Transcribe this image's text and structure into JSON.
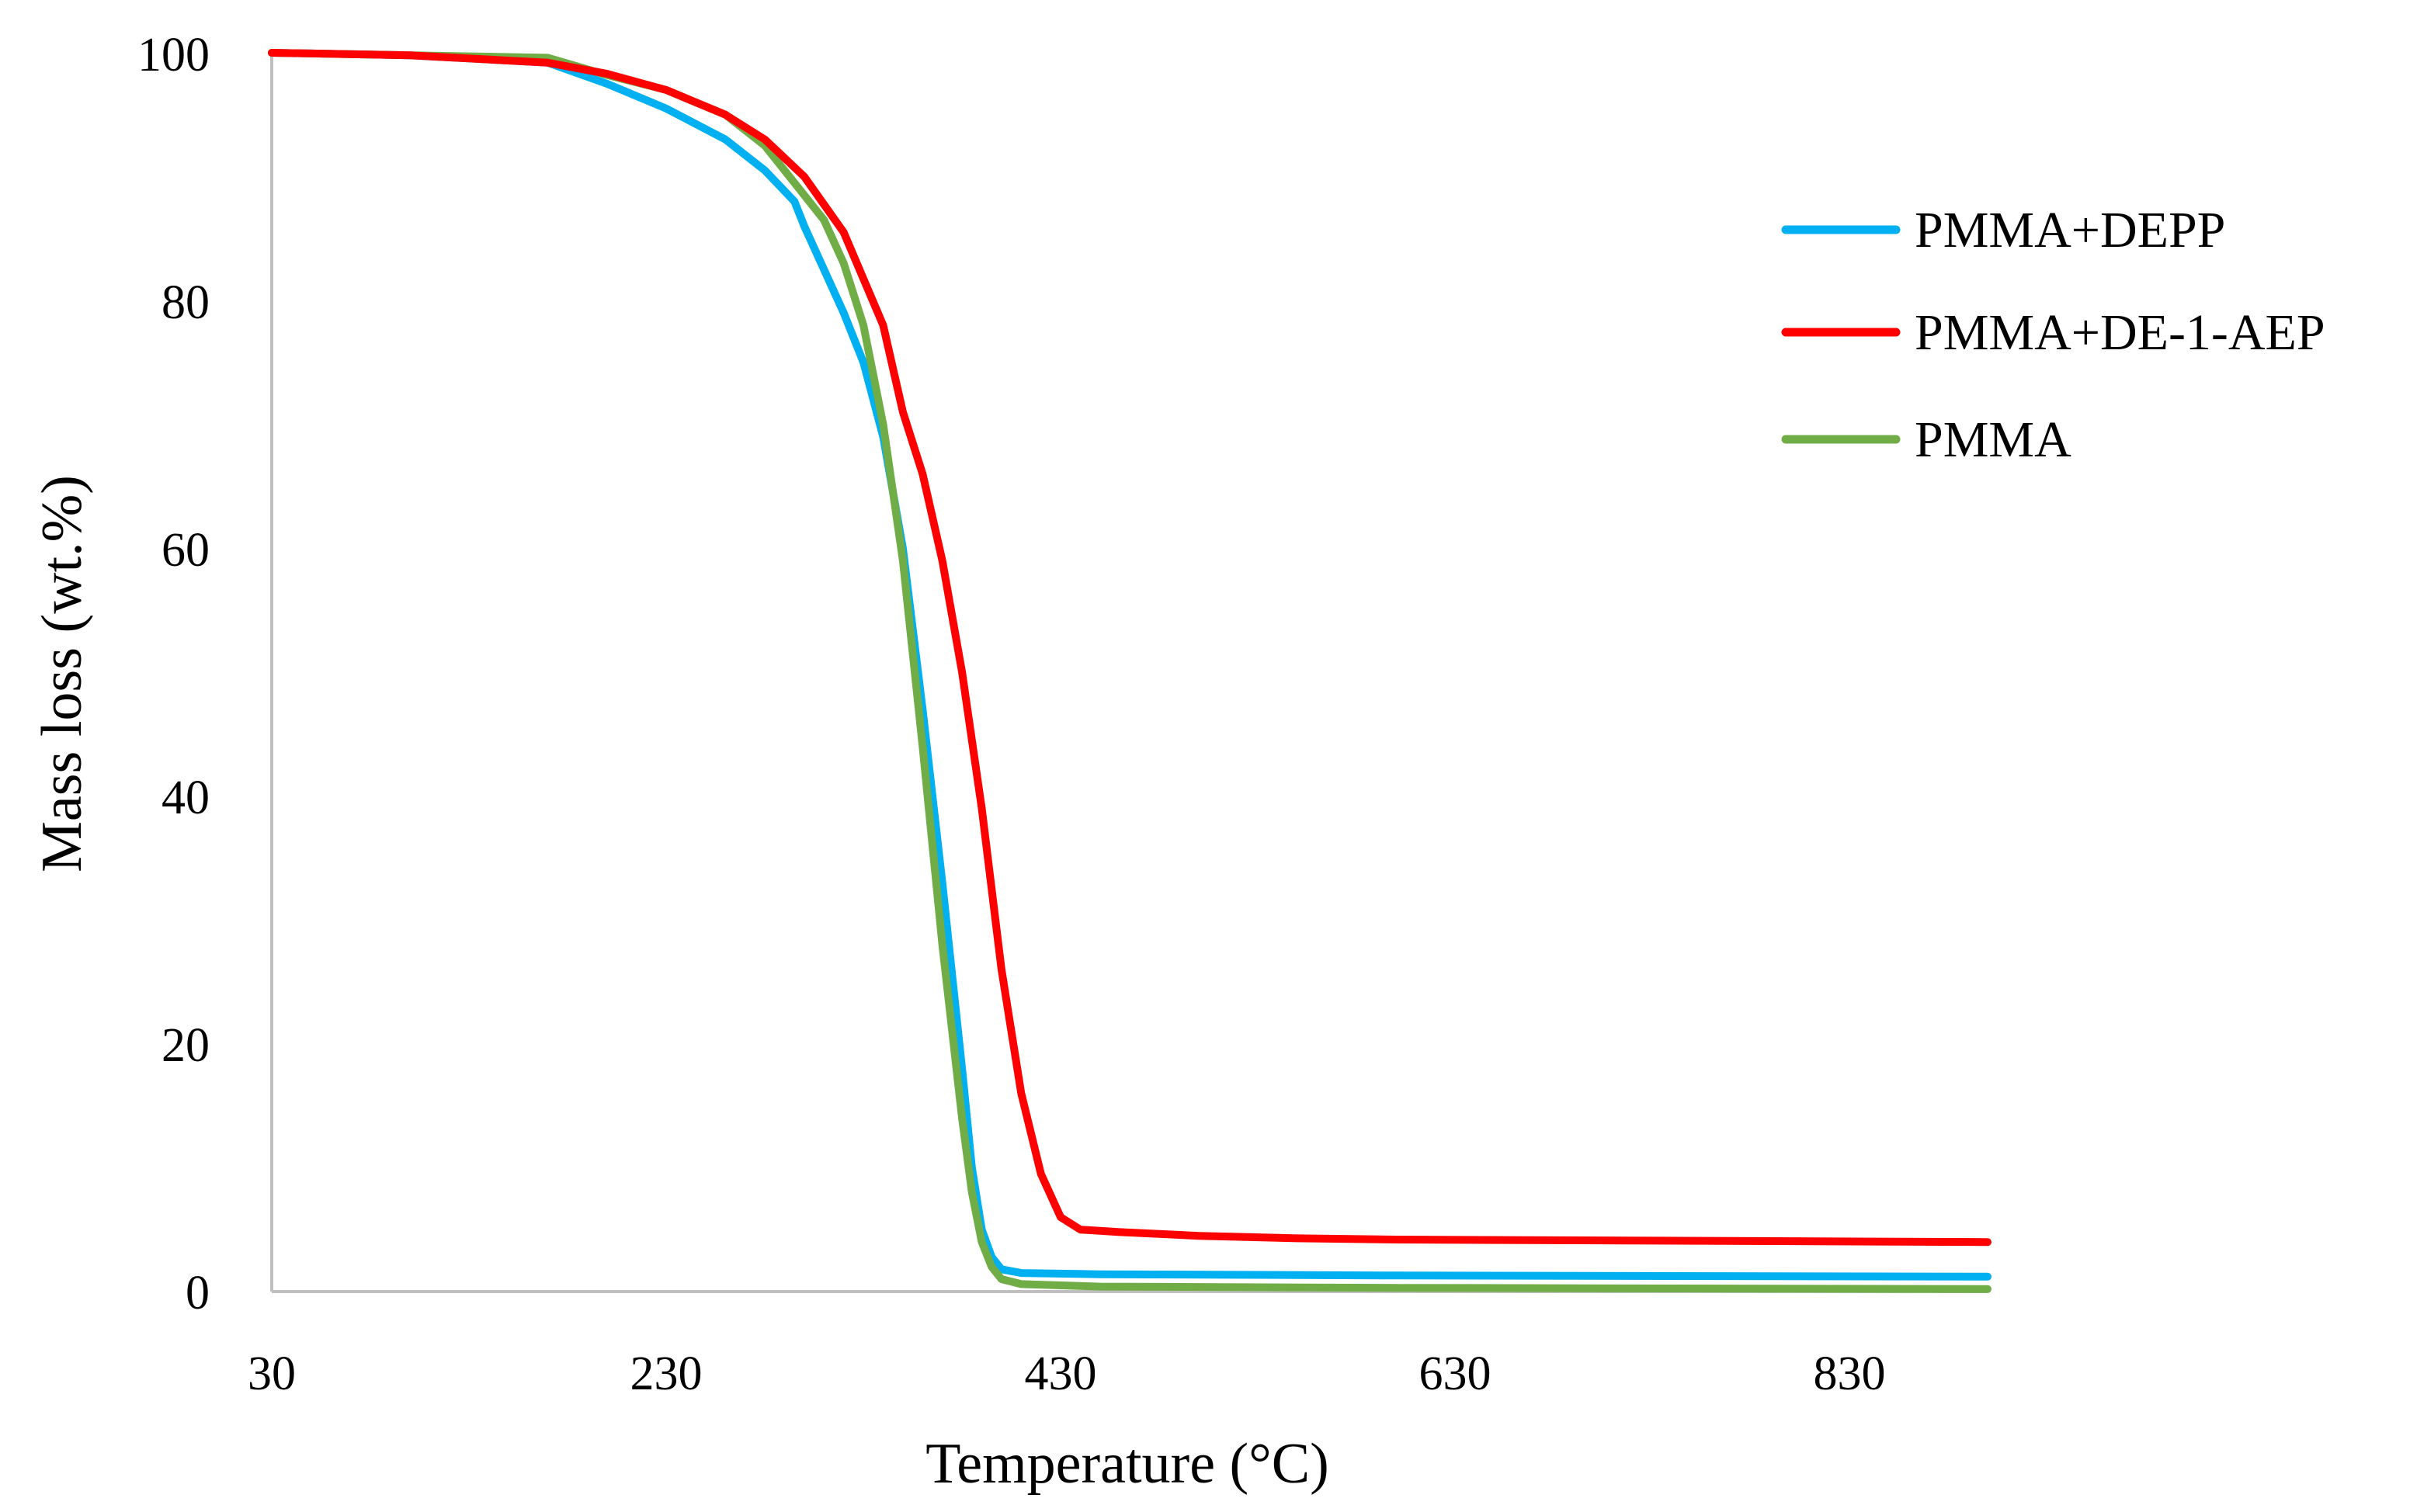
{
  "chart_data": {
    "type": "line",
    "title": "",
    "xlabel": "Temperature (°C)",
    "ylabel": "Mass loss (wt.%)",
    "xlim": [
      30,
      900
    ],
    "ylim": [
      0,
      100
    ],
    "x_ticks": [
      30,
      230,
      430,
      630,
      830
    ],
    "y_ticks": [
      0,
      20,
      40,
      60,
      80,
      100
    ],
    "grid": false,
    "legend_position": "top-right",
    "series": [
      {
        "name": "PMMA+DEPP",
        "color": "#00B0F0",
        "points": [
          [
            30,
            100
          ],
          [
            100,
            99.8
          ],
          [
            170,
            99.2
          ],
          [
            200,
            97.5
          ],
          [
            230,
            95.5
          ],
          [
            260,
            93
          ],
          [
            280,
            90.5
          ],
          [
            295,
            88
          ],
          [
            300,
            86
          ],
          [
            310,
            82.5
          ],
          [
            320,
            79
          ],
          [
            330,
            75
          ],
          [
            340,
            69
          ],
          [
            350,
            60
          ],
          [
            360,
            47
          ],
          [
            370,
            33
          ],
          [
            380,
            18
          ],
          [
            385,
            10
          ],
          [
            390,
            5
          ],
          [
            395,
            2.8
          ],
          [
            400,
            1.8
          ],
          [
            410,
            1.5
          ],
          [
            450,
            1.4
          ],
          [
            600,
            1.3
          ],
          [
            900,
            1.2
          ]
        ]
      },
      {
        "name": "PMMA+DE-1-AEP",
        "color": "#FF0000",
        "points": [
          [
            30,
            100
          ],
          [
            100,
            99.8
          ],
          [
            170,
            99.2
          ],
          [
            200,
            98.3
          ],
          [
            230,
            97
          ],
          [
            260,
            95
          ],
          [
            280,
            93
          ],
          [
            300,
            90
          ],
          [
            320,
            85.5
          ],
          [
            340,
            78
          ],
          [
            350,
            71
          ],
          [
            360,
            66
          ],
          [
            370,
            59
          ],
          [
            380,
            50
          ],
          [
            390,
            39
          ],
          [
            400,
            26
          ],
          [
            410,
            16
          ],
          [
            420,
            9.5
          ],
          [
            430,
            6
          ],
          [
            440,
            5
          ],
          [
            460,
            4.8
          ],
          [
            500,
            4.5
          ],
          [
            550,
            4.3
          ],
          [
            600,
            4.2
          ],
          [
            900,
            4.0
          ]
        ]
      },
      {
        "name": "PMMA",
        "color": "#70AD47",
        "points": [
          [
            30,
            100
          ],
          [
            100,
            99.8
          ],
          [
            170,
            99.6
          ],
          [
            200,
            98.2
          ],
          [
            230,
            97
          ],
          [
            260,
            95
          ],
          [
            280,
            92.5
          ],
          [
            300,
            88.5
          ],
          [
            310,
            86.5
          ],
          [
            320,
            83
          ],
          [
            330,
            78
          ],
          [
            340,
            70
          ],
          [
            350,
            59
          ],
          [
            360,
            44
          ],
          [
            370,
            28
          ],
          [
            380,
            14
          ],
          [
            385,
            8
          ],
          [
            390,
            4
          ],
          [
            395,
            2
          ],
          [
            400,
            1
          ],
          [
            410,
            0.6
          ],
          [
            450,
            0.4
          ],
          [
            600,
            0.3
          ],
          [
            900,
            0.2
          ]
        ]
      }
    ]
  }
}
